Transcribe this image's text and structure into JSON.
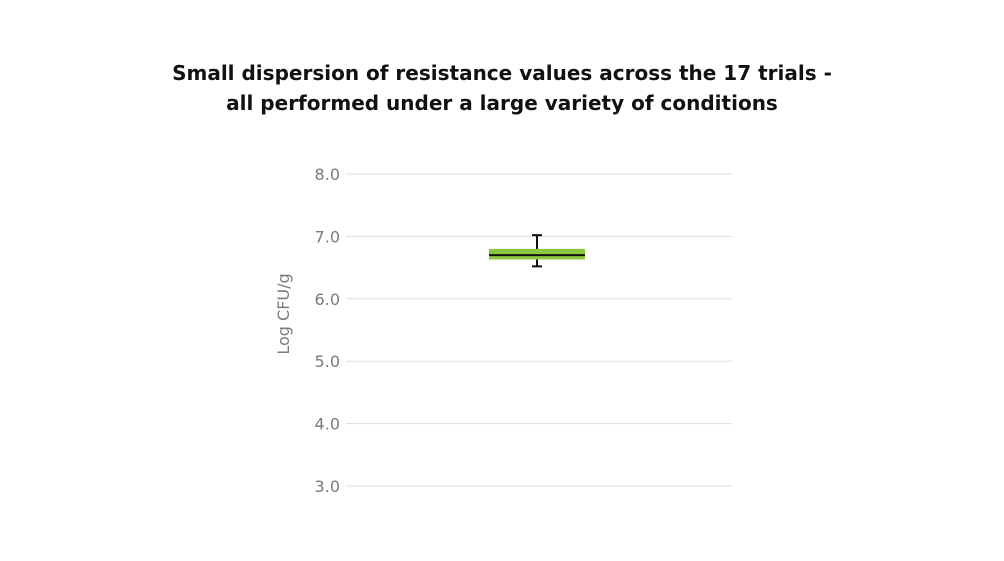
{
  "chart_data": {
    "type": "box",
    "title_lines": [
      "Small dispersion of resistance values across the 17 trials -",
      "all performed under a large variety of conditions"
    ],
    "ylabel": "Log CFU/g",
    "ylim": [
      3.0,
      8.0
    ],
    "yticks": [
      "8.0",
      "7.0",
      "6.0",
      "5.0",
      "4.0",
      "3.0"
    ],
    "grid": true,
    "box": {
      "whisker_low": 6.52,
      "q1": 6.63,
      "median": 6.7,
      "q3": 6.8,
      "whisker_high": 7.02
    },
    "box_color": "#8dc63f",
    "median_color": "#111111",
    "whisker_color": "#111111",
    "grid_color": "#dddddd"
  }
}
